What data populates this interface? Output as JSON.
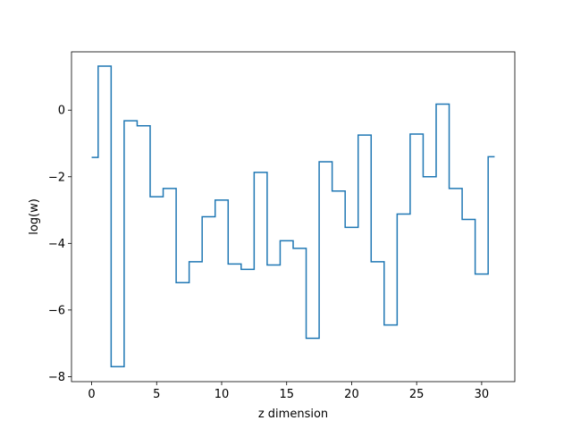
{
  "chart_data": {
    "type": "line",
    "drawstyle": "steps-mid",
    "title": "",
    "xlabel": "z dimension",
    "ylabel": "log(w)",
    "xlim": [
      -1.55,
      32.55
    ],
    "ylim": [
      -8.15,
      1.75
    ],
    "xticks": [
      0,
      5,
      10,
      15,
      20,
      25,
      30
    ],
    "yticks": [
      -8,
      -6,
      -4,
      -2,
      0
    ],
    "xtick_labels": [
      "0",
      "5",
      "10",
      "15",
      "20",
      "25",
      "30"
    ],
    "ytick_labels": [
      "−8",
      "−6",
      "−4",
      "−2",
      "0"
    ],
    "grid": false,
    "series": [
      {
        "color": "#1f77b4",
        "x": [
          0,
          1,
          2,
          3,
          4,
          5,
          6,
          7,
          8,
          9,
          10,
          11,
          12,
          13,
          14,
          15,
          16,
          17,
          18,
          19,
          20,
          21,
          22,
          23,
          24,
          25,
          26,
          27,
          28,
          29,
          30,
          31
        ],
        "y": [
          -1.42,
          1.32,
          -7.7,
          -0.32,
          -0.47,
          -2.6,
          -2.35,
          -5.18,
          -4.55,
          -3.2,
          -2.7,
          -4.62,
          -4.78,
          -1.87,
          -4.65,
          -3.92,
          -4.15,
          -6.85,
          -1.55,
          -2.43,
          -3.52,
          -0.75,
          -4.55,
          -6.45,
          -3.12,
          -0.72,
          -2.0,
          0.18,
          -2.35,
          -3.28,
          -4.92,
          -1.4
        ]
      }
    ]
  }
}
